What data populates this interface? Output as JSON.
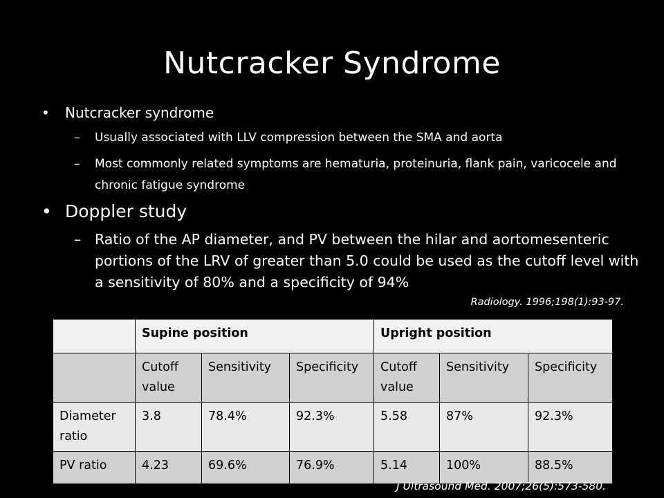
{
  "title": "Nutcracker Syndrome",
  "bullets": [
    {
      "marker": "•",
      "text": "Nutcracker syndrome",
      "subitems": [
        {
          "marker": "–",
          "text": "Usually associated with LLV compression between the SMA and aorta"
        },
        {
          "marker": "–",
          "text": "Most commonly related symptoms are hematuria, proteinuria, flank pain, varicocele and chronic fatigue syndrome"
        }
      ]
    },
    {
      "marker": "•",
      "text": "Doppler study",
      "subitems": [
        {
          "marker": "–",
          "text": "Ratio of the AP diameter, and PV between the hilar and aortomesenteric portions of the LRV of greater than 5.0 could be used as the cutoff level with a sensitivity of 80% and a specificity of 94%"
        }
      ]
    }
  ],
  "citations": {
    "first": "Radiology. 1996;198(1):93-97.",
    "second": "J Ultrasound Med. 2007;26(5):573-580."
  },
  "table": {
    "group_headers": [
      "",
      "Supine position",
      "Upright position"
    ],
    "column_headers": [
      "",
      "Cutoff value",
      "Sensitivity",
      "Specificity",
      "Cutoff value",
      "Sensitivity",
      "Specificity"
    ],
    "rows": [
      [
        "Diameter ratio",
        "3.8",
        "78.4%",
        "92.3%",
        "5.58",
        "87%",
        "92.3%"
      ],
      [
        "PV ratio",
        "4.23",
        "69.6%",
        "76.9%",
        "5.14",
        "100%",
        "88.5%"
      ]
    ]
  },
  "colors": {
    "background": "#000000",
    "text": "#ffffff",
    "table_header": "#f0f0f0",
    "table_band_dark": "#d0d0d0",
    "table_band_light": "#e8e8e8"
  }
}
